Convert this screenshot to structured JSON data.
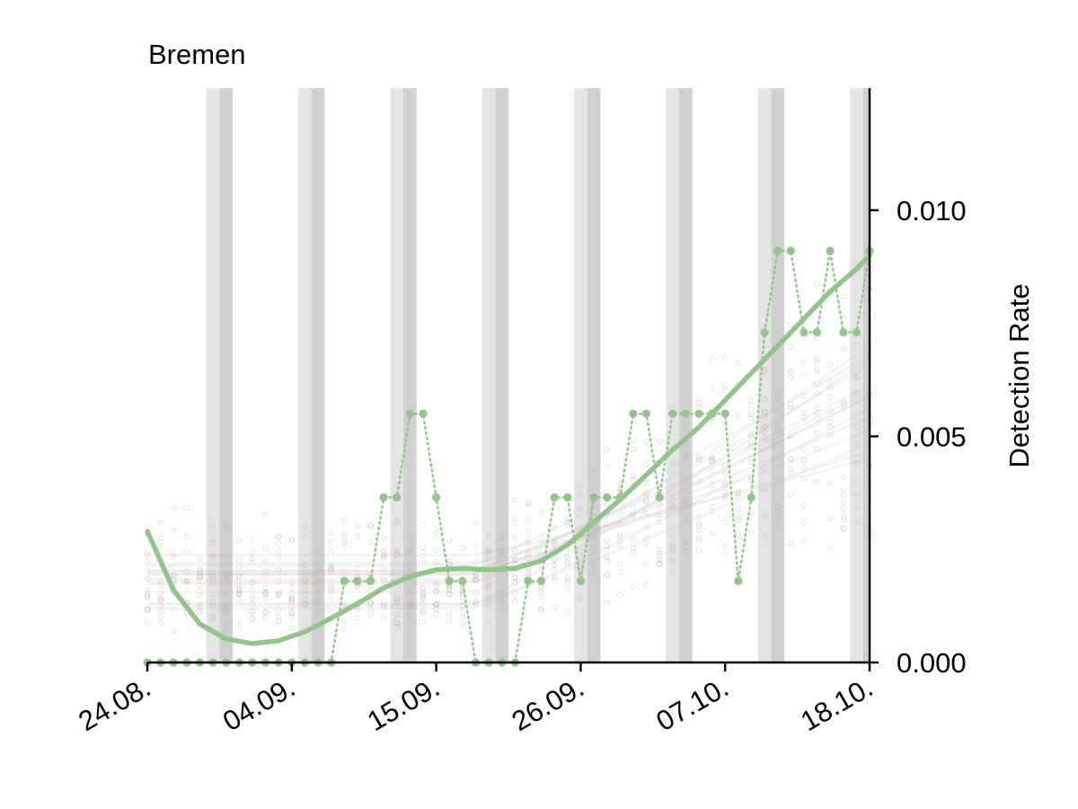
{
  "chart_data": {
    "type": "line",
    "title": "Bremen",
    "ylabel": "Detection Rate",
    "xlabel": "",
    "x_ticks": [
      "24.08.",
      "04.09.",
      "15.09.",
      "26.09.",
      "07.10.",
      "18.10."
    ],
    "y_ticks": [
      "0.000",
      "0.005",
      "0.010"
    ],
    "ylim": [
      0.0,
      0.0127
    ],
    "x_start_date": "2020-08-24",
    "x_end_date": "2020-10-18",
    "grid": false,
    "legend": "none",
    "weekend_bands": [
      {
        "sat": "2020-08-29",
        "sun": "2020-08-30"
      },
      {
        "sat": "2020-09-05",
        "sun": "2020-09-06"
      },
      {
        "sat": "2020-09-12",
        "sun": "2020-09-13"
      },
      {
        "sat": "2020-09-19",
        "sun": "2020-09-20"
      },
      {
        "sat": "2020-09-26",
        "sun": "2020-09-27"
      },
      {
        "sat": "2020-10-03",
        "sun": "2020-10-04"
      },
      {
        "sat": "2020-10-10",
        "sun": "2020-10-11"
      },
      {
        "sat": "2020-10-17",
        "sun": "2020-10-18"
      }
    ],
    "series": [
      {
        "name": "",
        "color": "#93c48b",
        "kind": "daily",
        "x": [
          "2020-08-24",
          "2020-08-25",
          "2020-08-26",
          "2020-08-27",
          "2020-08-28",
          "2020-08-29",
          "2020-08-30",
          "2020-08-31",
          "2020-09-01",
          "2020-09-02",
          "2020-09-03",
          "2020-09-04",
          "2020-09-05",
          "2020-09-06",
          "2020-09-07",
          "2020-09-08",
          "2020-09-09",
          "2020-09-10",
          "2020-09-11",
          "2020-09-12",
          "2020-09-13",
          "2020-09-14",
          "2020-09-15",
          "2020-09-16",
          "2020-09-17",
          "2020-09-18",
          "2020-09-19",
          "2020-09-20",
          "2020-09-21",
          "2020-09-22",
          "2020-09-23",
          "2020-09-24",
          "2020-09-25",
          "2020-09-26",
          "2020-09-27",
          "2020-09-28",
          "2020-09-29",
          "2020-09-30",
          "2020-10-01",
          "2020-10-02",
          "2020-10-03",
          "2020-10-04",
          "2020-10-05",
          "2020-10-06",
          "2020-10-07",
          "2020-10-08",
          "2020-10-09",
          "2020-10-10",
          "2020-10-11",
          "2020-10-12",
          "2020-10-13",
          "2020-10-14",
          "2020-10-15",
          "2020-10-16",
          "2020-10-17",
          "2020-10-18"
        ],
        "y": [
          0,
          0,
          0,
          0,
          0,
          0,
          0,
          0,
          0,
          0,
          0,
          0,
          0,
          0,
          0,
          0.0018,
          0.0018,
          0.0018,
          0.00365,
          0.00365,
          0.0055,
          0.0055,
          0.00365,
          0.0018,
          0.0018,
          0,
          0,
          0,
          0,
          0.0018,
          0.0018,
          0.00365,
          0.00365,
          0.0018,
          0.00365,
          0.00365,
          0.00365,
          0.0055,
          0.0055,
          0.00365,
          0.0055,
          0.0055,
          0.0055,
          0.0055,
          0.0055,
          0.0018,
          0.00365,
          0.0073,
          0.0091,
          0.0091,
          0.0073,
          0.0073,
          0.0091,
          0.0073,
          0.0073,
          0.0091
        ]
      },
      {
        "name": "",
        "color": "#93c48b",
        "kind": "trend",
        "x": [
          "2020-08-24",
          "2020-08-26",
          "2020-08-28",
          "2020-08-30",
          "2020-09-01",
          "2020-09-03",
          "2020-09-05",
          "2020-09-07",
          "2020-09-09",
          "2020-09-11",
          "2020-09-13",
          "2020-09-15",
          "2020-09-17",
          "2020-09-19",
          "2020-09-21",
          "2020-09-23",
          "2020-09-25",
          "2020-09-27",
          "2020-09-29",
          "2020-10-01",
          "2020-10-03",
          "2020-10-05",
          "2020-10-07",
          "2020-10-09",
          "2020-10-11",
          "2020-10-13",
          "2020-10-15",
          "2020-10-17",
          "2020-10-18"
        ],
        "y": [
          0.0029,
          0.0016,
          0.00085,
          0.00052,
          0.00042,
          0.00048,
          0.00068,
          0.00098,
          0.0013,
          0.00165,
          0.0019,
          0.00205,
          0.00208,
          0.00205,
          0.00208,
          0.00225,
          0.0026,
          0.0031,
          0.0036,
          0.00415,
          0.0047,
          0.0052,
          0.0058,
          0.0064,
          0.007,
          0.0076,
          0.0082,
          0.0087,
          0.009
        ]
      }
    ]
  }
}
